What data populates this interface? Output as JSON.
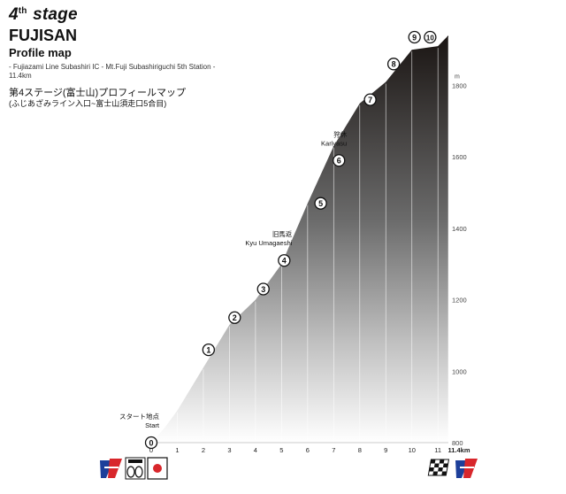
{
  "header": {
    "stage_number": "4",
    "stage_suffix": "th",
    "stage_word": "stage",
    "course_name": "FUJISAN",
    "subtitle": "Profile map",
    "route": "- Fujiazami Line Subashiri IC - Mt.Fuji Subashiriguchi 5th Station -",
    "distance": "11.4km",
    "jp_title": "第4ステージ(富士山)プロフィールマップ",
    "jp_route": "(ふじあざみライン入口~富士山須走口5合目)"
  },
  "chart_data": {
    "type": "area",
    "x": [
      0,
      0.5,
      1,
      2,
      3,
      4,
      5,
      6,
      7,
      8,
      9,
      10,
      11,
      11.4
    ],
    "y": [
      800,
      840,
      890,
      1010,
      1130,
      1200,
      1300,
      1470,
      1630,
      1750,
      1810,
      1900,
      1910,
      1940
    ],
    "xlim": [
      0,
      11.4
    ],
    "ylim": [
      800,
      1950
    ],
    "x_ticks": [
      "0",
      "1",
      "2",
      "3",
      "4",
      "5",
      "6",
      "7",
      "8",
      "9",
      "10",
      "11",
      "11.4km"
    ],
    "x_tick_values": [
      0,
      1,
      2,
      3,
      4,
      5,
      6,
      7,
      8,
      9,
      10,
      11,
      11.4
    ],
    "y_ticks": [
      800,
      1000,
      1200,
      1400,
      1600,
      1800
    ],
    "y_unit": "m",
    "grid": "vertical at each km",
    "markers": [
      {
        "label": "0",
        "km": 0,
        "elev": 800
      },
      {
        "label": "1",
        "km": 2.2,
        "elev": 1060
      },
      {
        "label": "2",
        "km": 3.2,
        "elev": 1150
      },
      {
        "label": "3",
        "km": 4.3,
        "elev": 1230
      },
      {
        "label": "4",
        "km": 5.1,
        "elev": 1310
      },
      {
        "label": "5",
        "km": 6.5,
        "elev": 1470
      },
      {
        "label": "6",
        "km": 7.2,
        "elev": 1590
      },
      {
        "label": "7",
        "km": 8.4,
        "elev": 1760
      },
      {
        "label": "8",
        "km": 9.3,
        "elev": 1860
      },
      {
        "label": "9",
        "km": 10.1,
        "elev": 1980
      },
      {
        "label": "10",
        "km": 10.7,
        "elev": 2030
      }
    ],
    "annotations": [
      {
        "jp": "スタート地点",
        "en": "Start",
        "marker": 0
      },
      {
        "jp": "旧馬返",
        "en": "Kyu Umagaeshi",
        "marker": 4
      },
      {
        "jp": "狩休",
        "en": "Kariyasu",
        "marker": 6
      }
    ]
  },
  "logos": {
    "start_logo": "tour-logo",
    "badges": [
      "cycle-tour-badge",
      "japan-flag-badge"
    ],
    "finish_flag": "checkered-flag",
    "finish_logo": "tour-logo"
  }
}
